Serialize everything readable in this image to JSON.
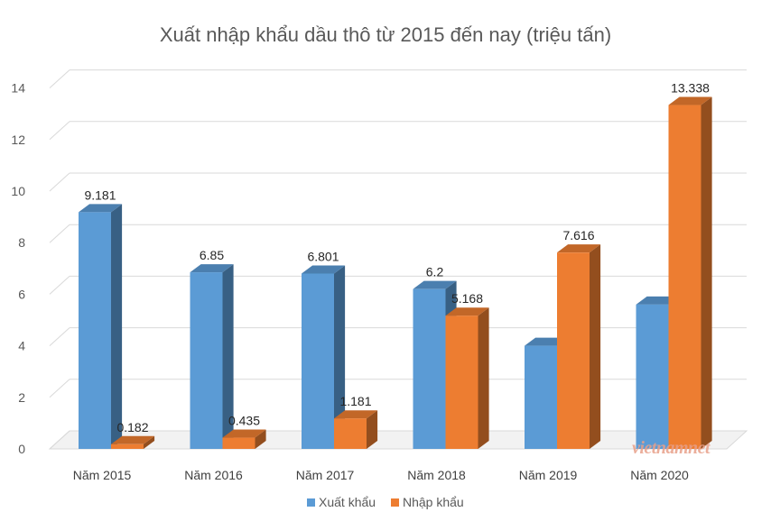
{
  "chart_data": {
    "type": "bar",
    "title": "Xuất nhập khẩu dầu thô từ 2015 đến nay (triệu tấn)",
    "categories": [
      "Năm 2015",
      "Năm 2016",
      "Năm 2017",
      "Năm 2018",
      "Năm 2019",
      "Năm 2020"
    ],
    "series": [
      {
        "name": "Xuất khẩu",
        "values": [
          9.181,
          6.85,
          6.801,
          6.2,
          4.0,
          5.6
        ],
        "labels": [
          "9.181",
          "6.85",
          "6.801",
          "6.2",
          "",
          ""
        ],
        "color": "#5b9bd5"
      },
      {
        "name": "Nhập khẩu",
        "values": [
          0.182,
          0.435,
          1.181,
          5.168,
          7.616,
          13.338
        ],
        "labels": [
          "0.182",
          "0.435",
          "1.181",
          "5.168",
          "7.616",
          "13.338"
        ],
        "color": "#ed7d31"
      }
    ],
    "ylim": [
      0,
      14
    ],
    "yticks": [
      "0",
      "2",
      "4",
      "6",
      "8",
      "10",
      "12",
      "14"
    ],
    "grid": true,
    "legend_position": "bottom",
    "style": "3d-clustered-column"
  },
  "watermark": "vietnamnet"
}
